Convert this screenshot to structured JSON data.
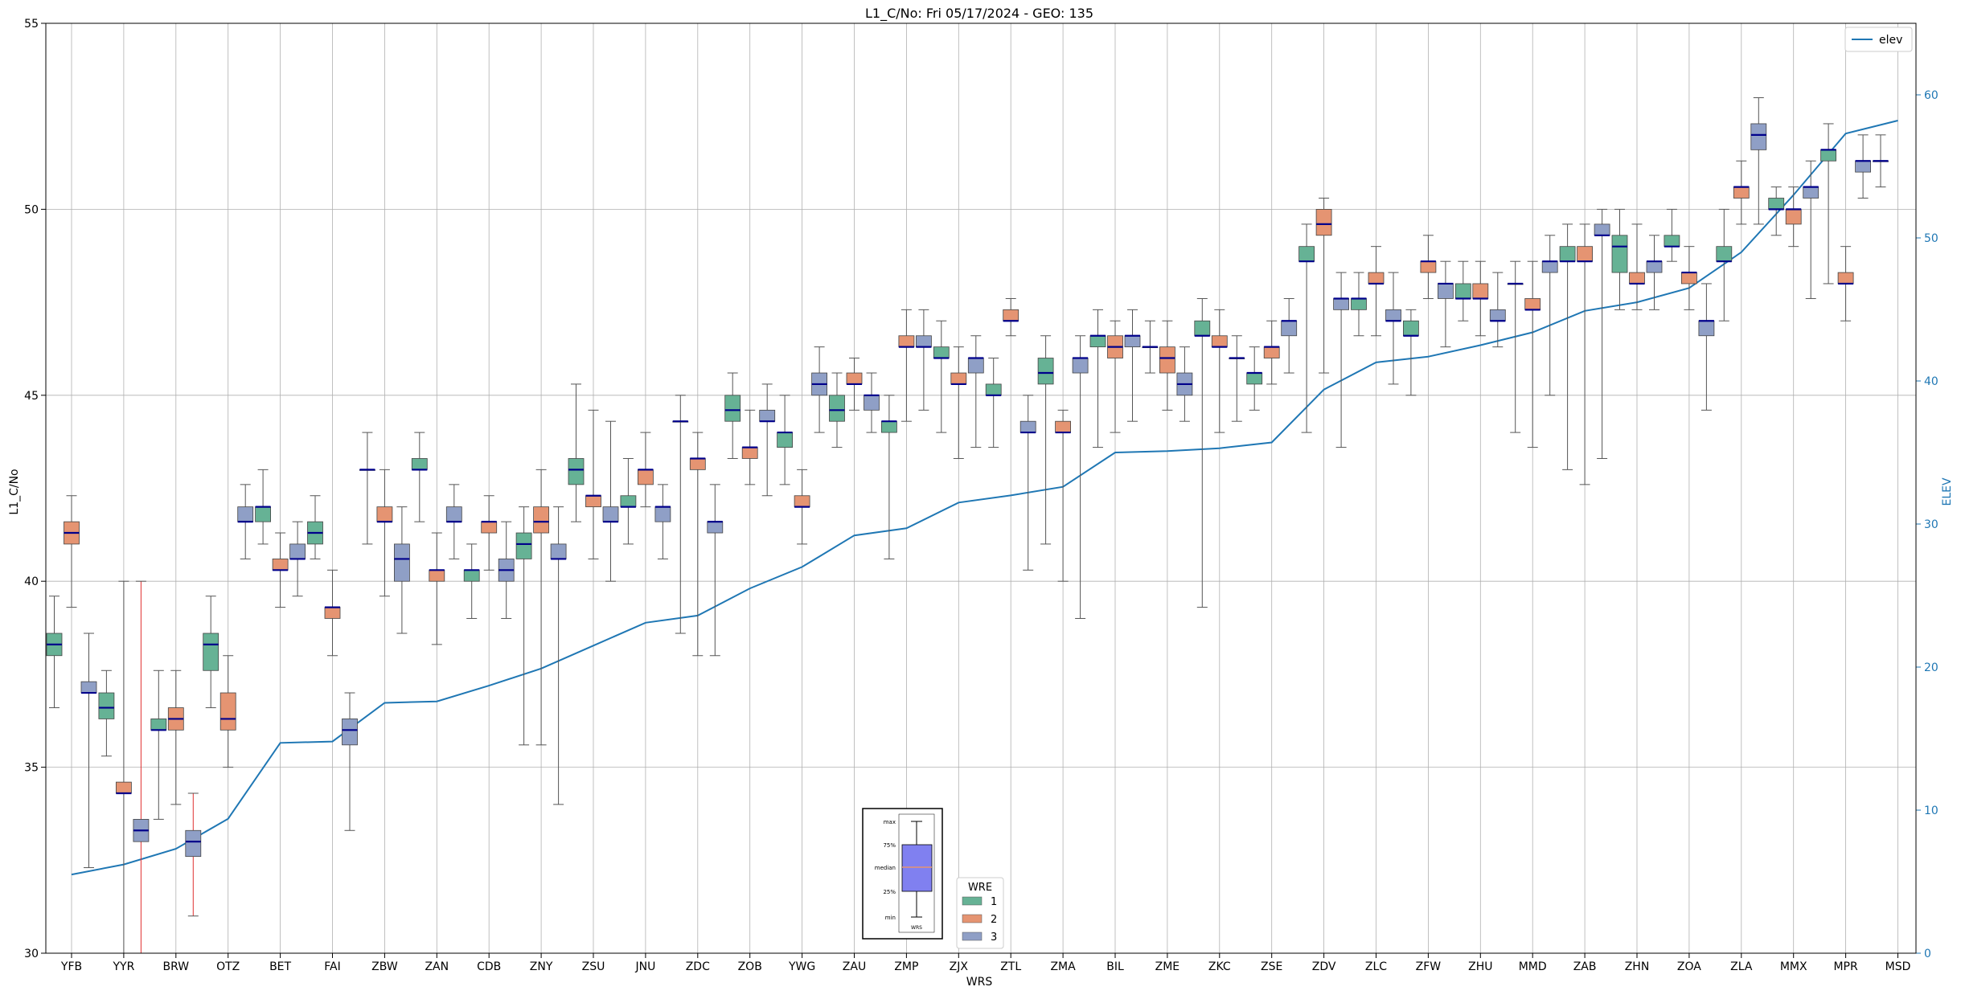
{
  "chart_data": {
    "type": "box",
    "title": "L1_C/No: Fri 05/17/2024 - GEO: 135",
    "xlabel": "WRS",
    "ylabel": "L1_C/No",
    "y2label": "ELEV",
    "ylim": [
      30,
      55
    ],
    "y2lim": [
      0,
      65
    ],
    "yticks": [
      30,
      35,
      40,
      45,
      50,
      55
    ],
    "y2ticks": [
      0,
      10,
      20,
      30,
      40,
      50,
      60
    ],
    "grid": true,
    "categories": [
      "YFB",
      "YYR",
      "BRW",
      "OTZ",
      "BET",
      "FAI",
      "ZBW",
      "ZAN",
      "CDB",
      "ZNY",
      "ZSU",
      "JNU",
      "ZDC",
      "ZOB",
      "YWG",
      "ZAU",
      "ZMP",
      "ZJX",
      "ZTL",
      "ZMA",
      "BIL",
      "ZME",
      "ZKC",
      "ZSE",
      "ZDV",
      "ZLC",
      "ZFW",
      "ZHU",
      "MMD",
      "ZAB",
      "ZHN",
      "ZOA",
      "ZLA",
      "MMX",
      "MPR",
      "MSD"
    ],
    "colors": {
      "1": "#66b295",
      "2": "#e59472",
      "3": "#8f9fc6",
      "median": "#00008b",
      "elev": "#1f77b4",
      "outlier_whisker": "#e03030"
    },
    "boxes": [
      {
        "cat": "YFB",
        "wre": "1",
        "min": 36.6,
        "q1": 38.0,
        "median": 38.3,
        "q3": 38.6,
        "max": 39.6
      },
      {
        "cat": "YFB",
        "wre": "2",
        "min": 39.3,
        "q1": 41.0,
        "median": 41.3,
        "q3": 41.6,
        "max": 42.3
      },
      {
        "cat": "YFB",
        "wre": "3",
        "min": 32.3,
        "q1": 37.0,
        "median": 37.0,
        "q3": 37.3,
        "max": 38.6
      },
      {
        "cat": "YYR",
        "wre": "1",
        "min": 35.3,
        "q1": 36.3,
        "median": 36.6,
        "q3": 37.0,
        "max": 37.6
      },
      {
        "cat": "YYR",
        "wre": "2",
        "min": 30.0,
        "q1": 34.3,
        "median": 34.3,
        "q3": 34.6,
        "max": 40.0
      },
      {
        "cat": "YYR",
        "wre": "3",
        "min": 30.0,
        "q1": 33.0,
        "median": 33.3,
        "q3": 33.6,
        "max": 40.0,
        "outlier": true
      },
      {
        "cat": "BRW",
        "wre": "1",
        "min": 33.6,
        "q1": 36.0,
        "median": 36.0,
        "q3": 36.3,
        "max": 37.6
      },
      {
        "cat": "BRW",
        "wre": "2",
        "min": 34.0,
        "q1": 36.0,
        "median": 36.3,
        "q3": 36.6,
        "max": 37.6
      },
      {
        "cat": "BRW",
        "wre": "3",
        "min": 31.0,
        "q1": 32.6,
        "median": 33.0,
        "q3": 33.3,
        "max": 34.3,
        "outlier": true
      },
      {
        "cat": "OTZ",
        "wre": "1",
        "min": 36.6,
        "q1": 37.6,
        "median": 38.3,
        "q3": 38.6,
        "max": 39.6
      },
      {
        "cat": "OTZ",
        "wre": "2",
        "min": 35.0,
        "q1": 36.0,
        "median": 36.3,
        "q3": 37.0,
        "max": 38.0
      },
      {
        "cat": "OTZ",
        "wre": "3",
        "min": 40.6,
        "q1": 41.6,
        "median": 41.6,
        "q3": 42.0,
        "max": 42.6
      },
      {
        "cat": "BET",
        "wre": "1",
        "min": 41.0,
        "q1": 41.6,
        "median": 42.0,
        "q3": 42.0,
        "max": 43.0
      },
      {
        "cat": "BET",
        "wre": "2",
        "min": 39.3,
        "q1": 40.3,
        "median": 40.3,
        "q3": 40.6,
        "max": 41.3
      },
      {
        "cat": "BET",
        "wre": "3",
        "min": 39.6,
        "q1": 40.6,
        "median": 40.6,
        "q3": 41.0,
        "max": 41.6
      },
      {
        "cat": "FAI",
        "wre": "1",
        "min": 40.6,
        "q1": 41.0,
        "median": 41.3,
        "q3": 41.6,
        "max": 42.3
      },
      {
        "cat": "FAI",
        "wre": "2",
        "min": 38.0,
        "q1": 39.0,
        "median": 39.3,
        "q3": 39.3,
        "max": 40.3
      },
      {
        "cat": "FAI",
        "wre": "3",
        "min": 33.3,
        "q1": 35.6,
        "median": 36.0,
        "q3": 36.3,
        "max": 37.0
      },
      {
        "cat": "ZBW",
        "wre": "1",
        "min": 41.0,
        "q1": 43.0,
        "median": 43.0,
        "q3": 43.0,
        "max": 44.0
      },
      {
        "cat": "ZBW",
        "wre": "2",
        "min": 39.6,
        "q1": 41.6,
        "median": 41.6,
        "q3": 42.0,
        "max": 43.0
      },
      {
        "cat": "ZBW",
        "wre": "3",
        "min": 38.6,
        "q1": 40.0,
        "median": 40.6,
        "q3": 41.0,
        "max": 42.0
      },
      {
        "cat": "ZAN",
        "wre": "1",
        "min": 41.6,
        "q1": 43.0,
        "median": 43.0,
        "q3": 43.3,
        "max": 44.0
      },
      {
        "cat": "ZAN",
        "wre": "2",
        "min": 38.3,
        "q1": 40.0,
        "median": 40.3,
        "q3": 40.3,
        "max": 41.3
      },
      {
        "cat": "ZAN",
        "wre": "3",
        "min": 40.6,
        "q1": 41.6,
        "median": 41.6,
        "q3": 42.0,
        "max": 42.6
      },
      {
        "cat": "CDB",
        "wre": "1",
        "min": 39.0,
        "q1": 40.0,
        "median": 40.3,
        "q3": 40.3,
        "max": 41.0
      },
      {
        "cat": "CDB",
        "wre": "2",
        "min": 40.3,
        "q1": 41.3,
        "median": 41.6,
        "q3": 41.6,
        "max": 42.3
      },
      {
        "cat": "CDB",
        "wre": "3",
        "min": 39.0,
        "q1": 40.0,
        "median": 40.3,
        "q3": 40.6,
        "max": 41.6
      },
      {
        "cat": "ZNY",
        "wre": "1",
        "min": 35.6,
        "q1": 40.6,
        "median": 41.0,
        "q3": 41.3,
        "max": 42.0
      },
      {
        "cat": "ZNY",
        "wre": "2",
        "min": 35.6,
        "q1": 41.3,
        "median": 41.6,
        "q3": 42.0,
        "max": 43.0
      },
      {
        "cat": "ZNY",
        "wre": "3",
        "min": 34.0,
        "q1": 40.6,
        "median": 40.6,
        "q3": 41.0,
        "max": 42.0
      },
      {
        "cat": "ZSU",
        "wre": "1",
        "min": 41.6,
        "q1": 42.6,
        "median": 43.0,
        "q3": 43.3,
        "max": 45.3
      },
      {
        "cat": "ZSU",
        "wre": "2",
        "min": 40.6,
        "q1": 42.0,
        "median": 42.3,
        "q3": 42.3,
        "max": 44.6
      },
      {
        "cat": "ZSU",
        "wre": "3",
        "min": 40.0,
        "q1": 41.6,
        "median": 41.6,
        "q3": 42.0,
        "max": 44.3
      },
      {
        "cat": "JNU",
        "wre": "1",
        "min": 41.0,
        "q1": 42.0,
        "median": 42.0,
        "q3": 42.3,
        "max": 43.3
      },
      {
        "cat": "JNU",
        "wre": "2",
        "min": 42.0,
        "q1": 42.6,
        "median": 43.0,
        "q3": 43.0,
        "max": 44.0
      },
      {
        "cat": "JNU",
        "wre": "3",
        "min": 40.6,
        "q1": 41.6,
        "median": 42.0,
        "q3": 42.0,
        "max": 42.6
      },
      {
        "cat": "ZDC",
        "wre": "1",
        "min": 38.6,
        "q1": 44.3,
        "median": 44.3,
        "q3": 44.3,
        "max": 45.0
      },
      {
        "cat": "ZDC",
        "wre": "2",
        "min": 38.0,
        "q1": 43.0,
        "median": 43.3,
        "q3": 43.3,
        "max": 44.0
      },
      {
        "cat": "ZDC",
        "wre": "3",
        "min": 38.0,
        "q1": 41.3,
        "median": 41.6,
        "q3": 41.6,
        "max": 42.6
      },
      {
        "cat": "ZOB",
        "wre": "1",
        "min": 43.3,
        "q1": 44.3,
        "median": 44.6,
        "q3": 45.0,
        "max": 45.6
      },
      {
        "cat": "ZOB",
        "wre": "2",
        "min": 42.6,
        "q1": 43.3,
        "median": 43.6,
        "q3": 43.6,
        "max": 44.6
      },
      {
        "cat": "ZOB",
        "wre": "3",
        "min": 42.3,
        "q1": 44.3,
        "median": 44.3,
        "q3": 44.6,
        "max": 45.3
      },
      {
        "cat": "YWG",
        "wre": "1",
        "min": 42.6,
        "q1": 43.6,
        "median": 44.0,
        "q3": 44.0,
        "max": 45.0
      },
      {
        "cat": "YWG",
        "wre": "2",
        "min": 41.0,
        "q1": 42.0,
        "median": 42.0,
        "q3": 42.3,
        "max": 43.0
      },
      {
        "cat": "YWG",
        "wre": "3",
        "min": 44.0,
        "q1": 45.0,
        "median": 45.3,
        "q3": 45.6,
        "max": 46.3
      },
      {
        "cat": "ZAU",
        "wre": "1",
        "min": 43.6,
        "q1": 44.3,
        "median": 44.6,
        "q3": 45.0,
        "max": 45.6
      },
      {
        "cat": "ZAU",
        "wre": "2",
        "min": 44.6,
        "q1": 45.3,
        "median": 45.3,
        "q3": 45.6,
        "max": 46.0
      },
      {
        "cat": "ZAU",
        "wre": "3",
        "min": 44.0,
        "q1": 44.6,
        "median": 45.0,
        "q3": 45.0,
        "max": 45.6
      },
      {
        "cat": "ZMP",
        "wre": "1",
        "min": 40.6,
        "q1": 44.0,
        "median": 44.3,
        "q3": 44.3,
        "max": 45.0
      },
      {
        "cat": "ZMP",
        "wre": "2",
        "min": 44.3,
        "q1": 46.3,
        "median": 46.3,
        "q3": 46.6,
        "max": 47.3
      },
      {
        "cat": "ZMP",
        "wre": "3",
        "min": 44.6,
        "q1": 46.3,
        "median": 46.3,
        "q3": 46.6,
        "max": 47.3
      },
      {
        "cat": "ZJX",
        "wre": "1",
        "min": 44.0,
        "q1": 46.0,
        "median": 46.0,
        "q3": 46.3,
        "max": 47.0
      },
      {
        "cat": "ZJX",
        "wre": "2",
        "min": 43.3,
        "q1": 45.3,
        "median": 45.3,
        "q3": 45.6,
        "max": 46.3
      },
      {
        "cat": "ZJX",
        "wre": "3",
        "min": 43.6,
        "q1": 45.6,
        "median": 46.0,
        "q3": 46.0,
        "max": 46.6
      },
      {
        "cat": "ZTL",
        "wre": "1",
        "min": 43.6,
        "q1": 45.0,
        "median": 45.0,
        "q3": 45.3,
        "max": 46.0
      },
      {
        "cat": "ZTL",
        "wre": "2",
        "min": 46.6,
        "q1": 47.0,
        "median": 47.0,
        "q3": 47.3,
        "max": 47.6
      },
      {
        "cat": "ZTL",
        "wre": "3",
        "min": 40.3,
        "q1": 44.0,
        "median": 44.0,
        "q3": 44.3,
        "max": 45.0
      },
      {
        "cat": "ZMA",
        "wre": "1",
        "min": 41.0,
        "q1": 45.3,
        "median": 45.6,
        "q3": 46.0,
        "max": 46.6
      },
      {
        "cat": "ZMA",
        "wre": "2",
        "min": 40.0,
        "q1": 44.0,
        "median": 44.0,
        "q3": 44.3,
        "max": 44.6
      },
      {
        "cat": "ZMA",
        "wre": "3",
        "min": 39.0,
        "q1": 45.6,
        "median": 46.0,
        "q3": 46.0,
        "max": 46.6
      },
      {
        "cat": "BIL",
        "wre": "1",
        "min": 43.6,
        "q1": 46.3,
        "median": 46.6,
        "q3": 46.6,
        "max": 47.3
      },
      {
        "cat": "BIL",
        "wre": "2",
        "min": 44.0,
        "q1": 46.0,
        "median": 46.3,
        "q3": 46.6,
        "max": 47.0
      },
      {
        "cat": "BIL",
        "wre": "3",
        "min": 44.3,
        "q1": 46.3,
        "median": 46.6,
        "q3": 46.6,
        "max": 47.3
      },
      {
        "cat": "ZME",
        "wre": "1",
        "min": 45.6,
        "q1": 46.3,
        "median": 46.3,
        "q3": 46.3,
        "max": 47.0
      },
      {
        "cat": "ZME",
        "wre": "2",
        "min": 44.6,
        "q1": 45.6,
        "median": 46.0,
        "q3": 46.3,
        "max": 47.0
      },
      {
        "cat": "ZME",
        "wre": "3",
        "min": 44.3,
        "q1": 45.0,
        "median": 45.3,
        "q3": 45.6,
        "max": 46.3
      },
      {
        "cat": "ZKC",
        "wre": "1",
        "min": 39.3,
        "q1": 46.6,
        "median": 46.6,
        "q3": 47.0,
        "max": 47.6
      },
      {
        "cat": "ZKC",
        "wre": "2",
        "min": 44.0,
        "q1": 46.3,
        "median": 46.3,
        "q3": 46.6,
        "max": 47.3
      },
      {
        "cat": "ZKC",
        "wre": "3",
        "min": 44.3,
        "q1": 46.0,
        "median": 46.0,
        "q3": 46.0,
        "max": 46.6
      },
      {
        "cat": "ZSE",
        "wre": "1",
        "min": 44.6,
        "q1": 45.3,
        "median": 45.6,
        "q3": 45.6,
        "max": 46.3
      },
      {
        "cat": "ZSE",
        "wre": "2",
        "min": 45.3,
        "q1": 46.0,
        "median": 46.3,
        "q3": 46.3,
        "max": 47.0
      },
      {
        "cat": "ZSE",
        "wre": "3",
        "min": 45.6,
        "q1": 46.6,
        "median": 47.0,
        "q3": 47.0,
        "max": 47.6
      },
      {
        "cat": "ZDV",
        "wre": "1",
        "min": 44.0,
        "q1": 48.6,
        "median": 48.6,
        "q3": 49.0,
        "max": 49.6
      },
      {
        "cat": "ZDV",
        "wre": "2",
        "min": 45.6,
        "q1": 49.3,
        "median": 49.6,
        "q3": 50.0,
        "max": 50.3
      },
      {
        "cat": "ZDV",
        "wre": "3",
        "min": 43.6,
        "q1": 47.3,
        "median": 47.6,
        "q3": 47.6,
        "max": 48.3
      },
      {
        "cat": "ZLC",
        "wre": "1",
        "min": 46.6,
        "q1": 47.3,
        "median": 47.6,
        "q3": 47.6,
        "max": 48.3
      },
      {
        "cat": "ZLC",
        "wre": "2",
        "min": 46.6,
        "q1": 48.0,
        "median": 48.0,
        "q3": 48.3,
        "max": 49.0
      },
      {
        "cat": "ZLC",
        "wre": "3",
        "min": 45.3,
        "q1": 47.0,
        "median": 47.0,
        "q3": 47.3,
        "max": 48.3
      },
      {
        "cat": "ZFW",
        "wre": "1",
        "min": 45.0,
        "q1": 46.6,
        "median": 46.6,
        "q3": 47.0,
        "max": 47.3
      },
      {
        "cat": "ZFW",
        "wre": "2",
        "min": 47.6,
        "q1": 48.3,
        "median": 48.6,
        "q3": 48.6,
        "max": 49.3
      },
      {
        "cat": "ZFW",
        "wre": "3",
        "min": 46.3,
        "q1": 47.6,
        "median": 48.0,
        "q3": 48.0,
        "max": 48.6
      },
      {
        "cat": "ZHU",
        "wre": "1",
        "min": 47.0,
        "q1": 47.6,
        "median": 47.6,
        "q3": 48.0,
        "max": 48.6
      },
      {
        "cat": "ZHU",
        "wre": "2",
        "min": 46.6,
        "q1": 47.6,
        "median": 47.6,
        "q3": 48.0,
        "max": 48.6
      },
      {
        "cat": "ZHU",
        "wre": "3",
        "min": 46.3,
        "q1": 47.0,
        "median": 47.0,
        "q3": 47.3,
        "max": 48.3
      },
      {
        "cat": "MMD",
        "wre": "1",
        "min": 44.0,
        "q1": 48.0,
        "median": 48.0,
        "q3": 48.0,
        "max": 48.6
      },
      {
        "cat": "MMD",
        "wre": "2",
        "min": 43.6,
        "q1": 47.3,
        "median": 47.3,
        "q3": 47.6,
        "max": 48.6
      },
      {
        "cat": "MMD",
        "wre": "3",
        "min": 45.0,
        "q1": 48.3,
        "median": 48.6,
        "q3": 48.6,
        "max": 49.3
      },
      {
        "cat": "ZAB",
        "wre": "1",
        "min": 43.0,
        "q1": 48.6,
        "median": 48.6,
        "q3": 49.0,
        "max": 49.6
      },
      {
        "cat": "ZAB",
        "wre": "2",
        "min": 42.6,
        "q1": 48.6,
        "median": 48.6,
        "q3": 49.0,
        "max": 49.6
      },
      {
        "cat": "ZAB",
        "wre": "3",
        "min": 43.3,
        "q1": 49.3,
        "median": 49.3,
        "q3": 49.6,
        "max": 50.0
      },
      {
        "cat": "ZHN",
        "wre": "1",
        "min": 47.3,
        "q1": 48.3,
        "median": 49.0,
        "q3": 49.3,
        "max": 50.0
      },
      {
        "cat": "ZHN",
        "wre": "2",
        "min": 47.3,
        "q1": 48.0,
        "median": 48.0,
        "q3": 48.3,
        "max": 49.6
      },
      {
        "cat": "ZHN",
        "wre": "3",
        "min": 47.3,
        "q1": 48.3,
        "median": 48.6,
        "q3": 48.6,
        "max": 49.3
      },
      {
        "cat": "ZOA",
        "wre": "1",
        "min": 48.6,
        "q1": 49.0,
        "median": 49.0,
        "q3": 49.3,
        "max": 50.0
      },
      {
        "cat": "ZOA",
        "wre": "2",
        "min": 47.3,
        "q1": 48.0,
        "median": 48.3,
        "q3": 48.3,
        "max": 49.0
      },
      {
        "cat": "ZOA",
        "wre": "3",
        "min": 44.6,
        "q1": 46.6,
        "median": 47.0,
        "q3": 47.0,
        "max": 48.0
      },
      {
        "cat": "ZLA",
        "wre": "1",
        "min": 47.0,
        "q1": 48.6,
        "median": 48.6,
        "q3": 49.0,
        "max": 50.0
      },
      {
        "cat": "ZLA",
        "wre": "2",
        "min": 49.6,
        "q1": 50.3,
        "median": 50.6,
        "q3": 50.6,
        "max": 51.3
      },
      {
        "cat": "ZLA",
        "wre": "3",
        "min": 49.6,
        "q1": 51.6,
        "median": 52.0,
        "q3": 52.3,
        "max": 53.0
      },
      {
        "cat": "MMX",
        "wre": "1",
        "min": 49.3,
        "q1": 50.0,
        "median": 50.0,
        "q3": 50.3,
        "max": 50.6
      },
      {
        "cat": "MMX",
        "wre": "2",
        "min": 49.0,
        "q1": 49.6,
        "median": 50.0,
        "q3": 50.0,
        "max": 50.6
      },
      {
        "cat": "MMX",
        "wre": "3",
        "min": 47.6,
        "q1": 50.3,
        "median": 50.6,
        "q3": 50.6,
        "max": 51.3
      },
      {
        "cat": "MPR",
        "wre": "1",
        "min": 48.0,
        "q1": 51.3,
        "median": 51.6,
        "q3": 51.6,
        "max": 52.3
      },
      {
        "cat": "MPR",
        "wre": "2",
        "min": 47.0,
        "q1": 48.0,
        "median": 48.0,
        "q3": 48.3,
        "max": 49.0
      },
      {
        "cat": "MPR",
        "wre": "3",
        "min": 50.3,
        "q1": 51.0,
        "median": 51.3,
        "q3": 51.3,
        "max": 52.0
      },
      {
        "cat": "MSD",
        "wre": "1",
        "min": 50.6,
        "q1": 51.3,
        "median": 51.3,
        "q3": 51.3,
        "max": 52.0
      }
    ],
    "elev_series": {
      "name": "elev",
      "values": [
        5.5,
        6.2,
        7.3,
        9.4,
        14.7,
        14.8,
        17.5,
        17.6,
        18.7,
        19.9,
        21.5,
        23.1,
        23.6,
        25.5,
        27.0,
        29.2,
        29.7,
        31.5,
        32.0,
        32.6,
        35.0,
        35.1,
        35.3,
        35.7,
        39.4,
        41.3,
        41.7,
        42.5,
        43.4,
        44.9,
        45.5,
        46.5,
        49.0,
        53.0,
        57.3,
        58.2
      ]
    },
    "legends": {
      "line_legend": "elev",
      "wre_legend": {
        "title": "WRE",
        "items": [
          "1",
          "2",
          "3"
        ]
      },
      "box_key": {
        "labels": [
          "max",
          "75%",
          "median",
          "25%",
          "min"
        ],
        "xlabel": "WRS"
      }
    }
  }
}
